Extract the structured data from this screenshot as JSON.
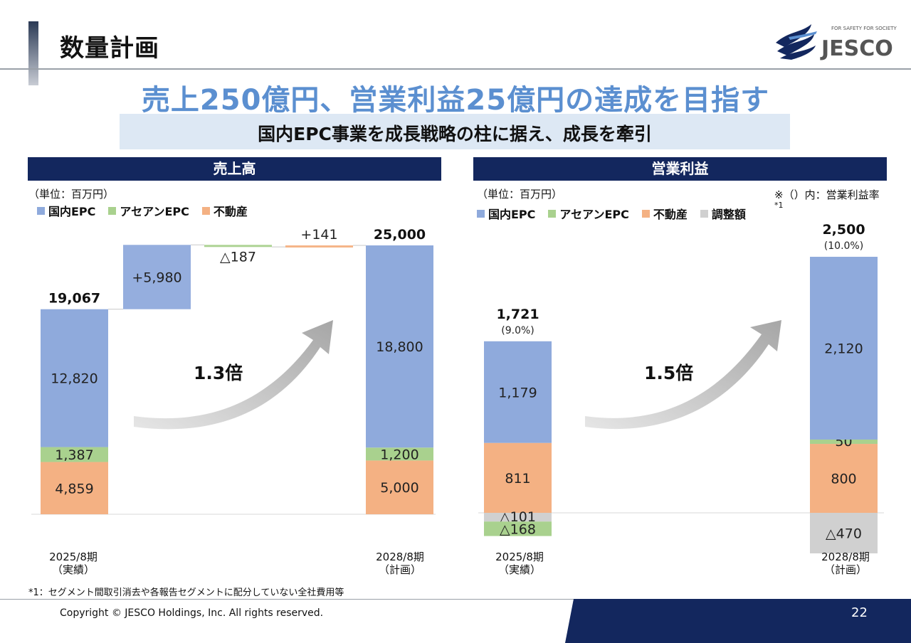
{
  "page": {
    "title": "数量計画",
    "headline": "売上250億円、営業利益25億円の達成を目指す",
    "subhead": "国内EPC事業を成長戦略の柱に据え、成長を牽引",
    "logo_tagline": "FOR SAFETY FOR SOCIETY",
    "logo_text": "JESCO",
    "footnote": "*1：セグメント間取引消去や各報告セグメントに配分していない全社費用等",
    "copyright": "Copyright © JESCO Holdings, Inc.  All rights reserved.",
    "page_number": "22"
  },
  "colors": {
    "domestic_epc": "#8faadc",
    "asean_epc": "#a9d18e",
    "real_estate": "#f4b183",
    "adjustment": "#d0d0d0",
    "navy": "#13275e",
    "headline_blue": "#5b8fd0"
  },
  "legend": {
    "domestic_epc": "国内EPC",
    "asean_epc": "アセアンEPC",
    "real_estate": "不動産",
    "adjustment": "調整額",
    "adjustment_sup": "*1"
  },
  "sales_panel": {
    "header": "売上高",
    "unit": "（単位：百万円）",
    "multiplier": "1.3倍"
  },
  "profit_panel": {
    "header": "営業利益",
    "unit": "（単位：百万円）",
    "note": "※（）内：営業利益率",
    "multiplier": "1.5倍"
  },
  "chart_data": [
    {
      "type": "bar",
      "subtype": "stacked waterfall",
      "title": "売上高",
      "unit": "百万円",
      "categories": [
        "2025/8期\n（実績）",
        "国内EPC",
        "アセアンEPC",
        "不動産",
        "2028/8期\n（計画）"
      ],
      "bars": [
        {
          "category": "2025/8期（実績）",
          "line1": "2025/8期",
          "line2": "（実績）",
          "total": 19067,
          "total_label": "19,067",
          "segments": [
            {
              "series": "不動産",
              "value": 4859,
              "label": "4,859"
            },
            {
              "series": "アセアンEPC",
              "value": 1387,
              "label": "1,387"
            },
            {
              "series": "国内EPC",
              "value": 12820,
              "label": "12,820"
            }
          ]
        },
        {
          "category": "2028/8期（計画）",
          "line1": "2028/8期",
          "line2": "（計画）",
          "total": 25000,
          "total_label": "25,000",
          "segments": [
            {
              "series": "不動産",
              "value": 5000,
              "label": "5,000"
            },
            {
              "series": "アセアンEPC",
              "value": 1200,
              "label": "1,200"
            },
            {
              "series": "国内EPC",
              "value": 18800,
              "label": "18,800"
            }
          ]
        }
      ],
      "bridge": [
        {
          "series": "国内EPC",
          "value": 5980,
          "label": "+5,980"
        },
        {
          "series": "アセアンEPC",
          "value": -187,
          "label": "△187"
        },
        {
          "series": "不動産",
          "value": 141,
          "label": "+141"
        }
      ],
      "ylim": [
        0,
        25000
      ]
    },
    {
      "type": "bar",
      "subtype": "stacked",
      "title": "営業利益",
      "unit": "百万円",
      "categories": [
        "2025/8期（実績）",
        "2028/8期（計画）"
      ],
      "bars": [
        {
          "category": "2025/8期（実績）",
          "line1": "2025/8期",
          "line2": "（実績）",
          "total": 1721,
          "total_label": "1,721",
          "margin_label": "(9.0%)",
          "segments": [
            {
              "series": "不動産",
              "value": 811,
              "label": "811"
            },
            {
              "series": "国内EPC",
              "value": 1179,
              "label": "1,179"
            },
            {
              "series": "調整額",
              "value": -101,
              "label": "△101"
            },
            {
              "series": "アセアンEPC",
              "value": -168,
              "label": "△168"
            }
          ]
        },
        {
          "category": "2028/8期（計画）",
          "line1": "2028/8期",
          "line2": "（計画）",
          "total": 2500,
          "total_label": "2,500",
          "margin_label": "(10.0%)",
          "segments": [
            {
              "series": "不動産",
              "value": 800,
              "label": "800"
            },
            {
              "series": "アセアンEPC",
              "value": 50,
              "label": "50"
            },
            {
              "series": "国内EPC",
              "value": 2120,
              "label": "2,120"
            },
            {
              "series": "調整額",
              "value": -470,
              "label": "△470"
            }
          ]
        }
      ]
    }
  ]
}
